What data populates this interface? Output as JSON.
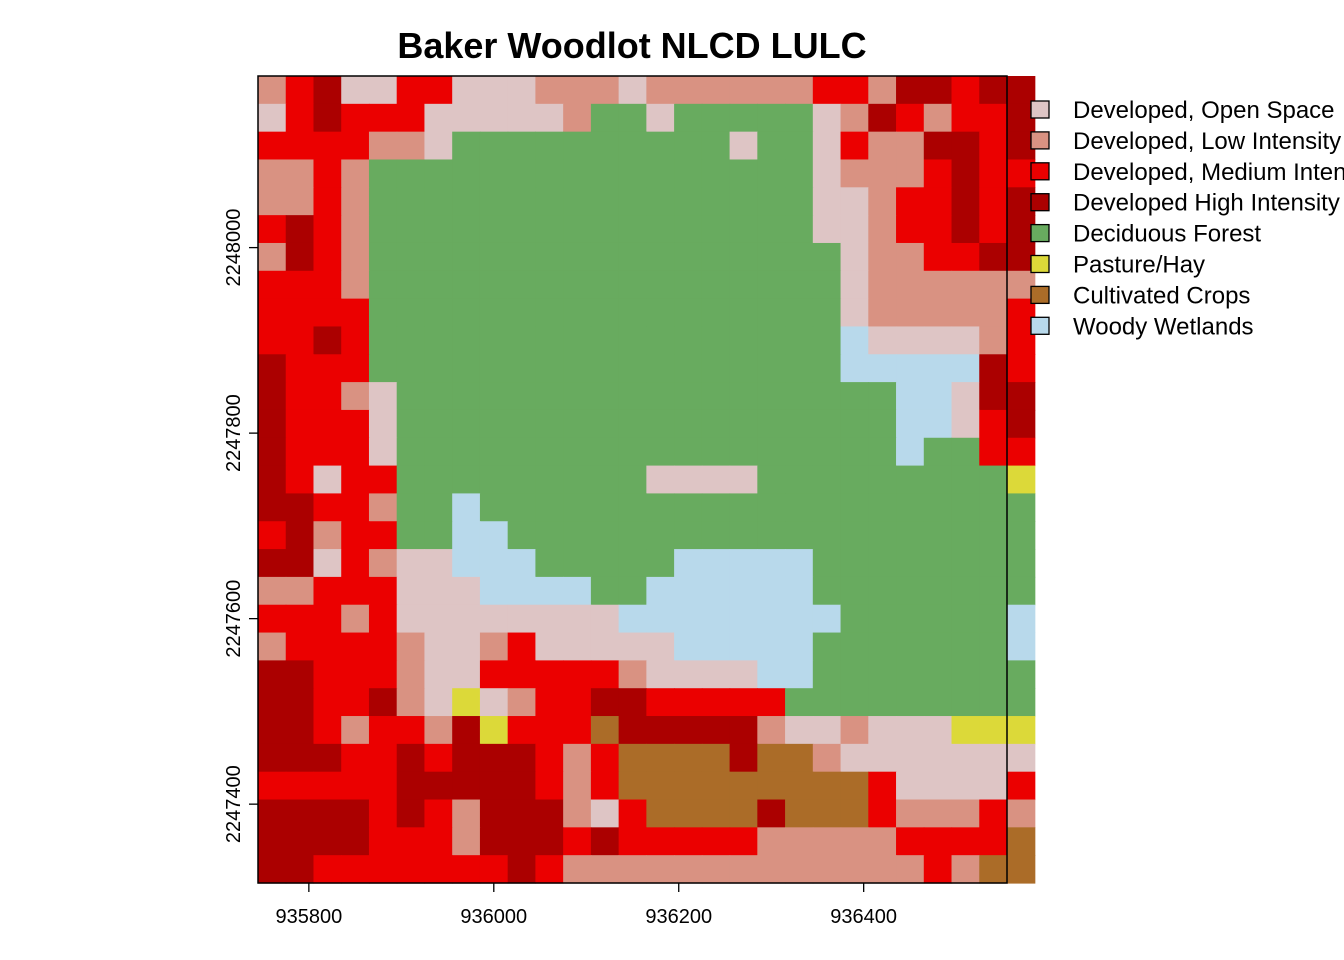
{
  "chart_data": {
    "type": "heatmap",
    "title": "Baker Woodlot NLCD LULC",
    "xlabel": "",
    "ylabel": "",
    "x_ticks": [
      935800,
      936000,
      936200,
      936400
    ],
    "y_ticks": [
      2247400,
      2247600,
      2247800,
      2248000
    ],
    "xlim": [
      935745,
      936555
    ],
    "ylim": [
      2247315,
      2248185
    ],
    "cell_size": 30,
    "grid": false,
    "legend_position": "right",
    "classes": [
      {
        "code": "O",
        "name": "Developed, Open Space",
        "color": "#DEC5C5"
      },
      {
        "code": "L",
        "name": "Developed, Low Intensity",
        "color": "#D99282"
      },
      {
        "code": "M",
        "name": "Developed, Medium Intensity",
        "color": "#EB0000"
      },
      {
        "code": "H",
        "name": "Developed High Intensity",
        "color": "#AB0000"
      },
      {
        "code": "F",
        "name": "Deciduous Forest",
        "color": "#68AB5F"
      },
      {
        "code": "P",
        "name": "Pasture/Hay",
        "color": "#DCD939"
      },
      {
        "code": "C",
        "name": "Cultivated Crops",
        "color": "#AB6C28"
      },
      {
        "code": "W",
        "name": "Woody Wetlands",
        "color": "#B8D9EB"
      }
    ],
    "rows_top_to_bottom": [
      "LMHOOMMOOOLLLOLLLLLLMMLHHMHH",
      "OMHMMMOOOOOLFFOFFFFFOLHMLMMH",
      "MMMMLLOFFFFFFFFFFOFFOMLLHHMH",
      "LLMLFFFFFFFFFFFFFFFFOLLLMHMM",
      "LLMLFFFFFFFFFFFFFFFFOOLMMHMH",
      "MHMLFFFFFFFFFFFFFFFFOOLMMHMH",
      "LHMLFFFFFFFFFFFFFFFFFOLLMMHH",
      "MMMLFFFFFFFFFFFFFFFFFOLLLLLL",
      "MMMMFFFFFFFFFFFFFFFFFOLLLLLM",
      "MMHMFFFFFFFFFFFFFFFFFWOOOOLM",
      "HMMMFFFFFFFFFFFFFFFFFWWWWWHM",
      "HMMLOFFFFFFFFFFFFFFFFFFWWOHH",
      "HMMMOFFFFFFFFFFFFFFFFFFWWOMH",
      "HMMMOFFFFFFFFFFFFFFFFFFWFFMM",
      "HMOMMFFFFFFFFFOOOOFFFFFFFFFP",
      "HHMMLFFWFFFFFFFFFFFFFFFFFFFF",
      "MHLMMFFWWFFFFFFFFFFFFFFFFFFF",
      "HHOMLOOWWWFFFFFWWWWWFFFFFFFF",
      "LLMMMOOOWWWWFFWWWWWWFFFFFFFF",
      "MMMLMOOOOOOOOWWWWWWWWFFFFFFW",
      "LMMMMLOOLMOOOOOWWWWWFFFFFFFW",
      "HHMMMLOOMMMMMLOOOOWWFFFFFFFF",
      "HHMMHLOPOLMMHHMMMMMFFFFFFFFF",
      "HHMLMMLHPMMMCHHHHHLOOLOOOPPP",
      "HHHMMHMHHHMLMCCCCHCCLOOOOOOO",
      "MMMMMHHHHHMLMCCCCCCCCCMOOOOM",
      "HHHHMHMLHHHLOMCCCCHCCCMLLLML",
      "HHHHMMMLHHHMHMMMMMLLLLLMMMMC",
      "HHMMMMMMMHMLLLLLLLLLLLLLMLCC"
    ]
  }
}
